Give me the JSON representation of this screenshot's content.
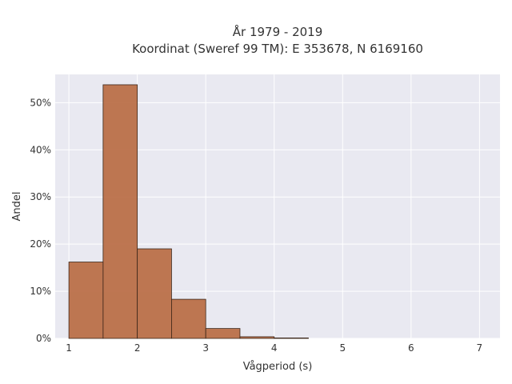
{
  "chart_data": {
    "type": "bar",
    "title": [
      "År 1979 - 2019",
      "Koordinat (Sweref 99 TM): E 353678, N 6169160"
    ],
    "xlabel": "Vågperiod (s)",
    "ylabel": "Andel",
    "bins": [
      {
        "x0": 1.0,
        "x1": 1.5,
        "value": 16.2
      },
      {
        "x0": 1.5,
        "x1": 2.0,
        "value": 53.8
      },
      {
        "x0": 2.0,
        "x1": 2.5,
        "value": 19.0
      },
      {
        "x0": 2.5,
        "x1": 3.0,
        "value": 8.3
      },
      {
        "x0": 3.0,
        "x1": 3.5,
        "value": 2.1
      },
      {
        "x0": 3.5,
        "x1": 4.0,
        "value": 0.35
      },
      {
        "x0": 4.0,
        "x1": 4.5,
        "value": 0.1
      }
    ],
    "xlim": [
      0.8,
      7.3
    ],
    "ylim": [
      0,
      56
    ],
    "xticks": [
      1,
      2,
      3,
      4,
      5,
      6,
      7
    ],
    "yticks": [
      0,
      10,
      20,
      30,
      40,
      50
    ],
    "ytick_labels": [
      "0%",
      "10%",
      "20%",
      "30%",
      "40%",
      "50%"
    ],
    "grid": true,
    "colors": {
      "bar_fill": "#b86b43",
      "bar_stroke": "#3a2518",
      "plot_bg": "#e9e9f1",
      "grid": "#ffffff"
    }
  }
}
